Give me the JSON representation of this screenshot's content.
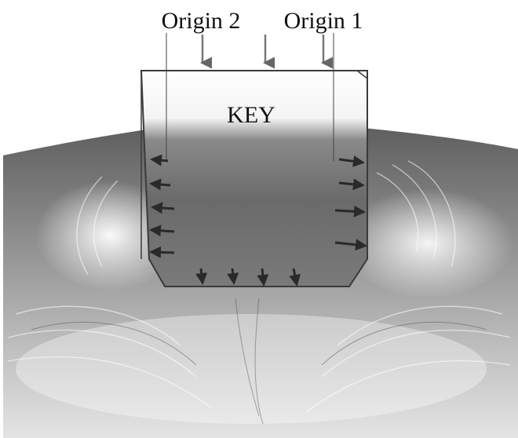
{
  "labels": {
    "origin_2": "Origin 2",
    "origin_1": "Origin 1",
    "key": "KEY"
  },
  "colors": {
    "background": "#ffffff",
    "metal_dark": "#6e6e6e",
    "metal_mid": "#9a9a9a",
    "metal_light": "#d6d6d6",
    "key_outline": "#3a3a3a",
    "arrow": "#2a2a2a"
  },
  "icons": [
    "down-arrow-icon",
    "left-arrow-icon",
    "right-arrow-icon"
  ]
}
